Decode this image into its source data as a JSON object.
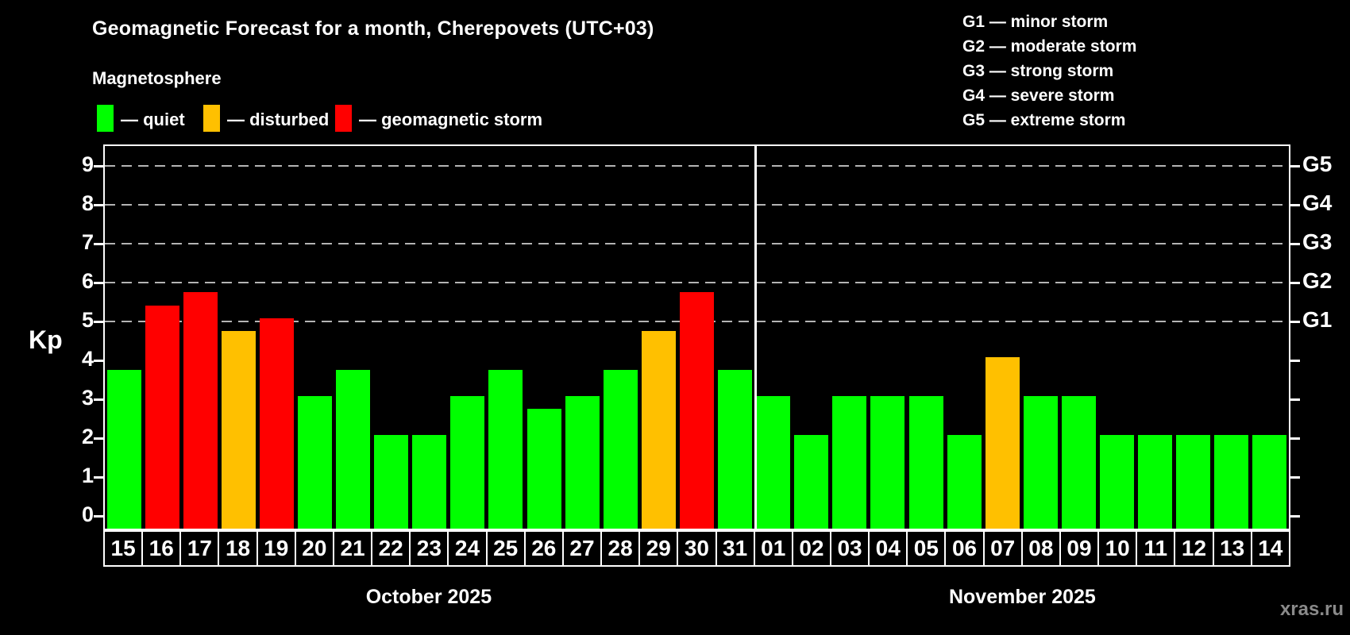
{
  "title": "Geomagnetic Forecast for a month, Cherepovets (UTC+03)",
  "subtitle": "Magnetosphere",
  "legend": {
    "quiet_label": "— quiet",
    "disturbed_label": "— disturbed",
    "storm_label": "— geomagnetic storm"
  },
  "storm_scale": [
    "G1 — minor storm",
    "G2 — moderate storm",
    "G3 — strong storm",
    "G4 — severe storm",
    "G5 — extreme storm"
  ],
  "axis": {
    "y_label": "Kp",
    "y_ticks": [
      0,
      1,
      2,
      3,
      4,
      5,
      6,
      7,
      8,
      9
    ],
    "g_levels": [
      {
        "label": "G1",
        "kp": 5
      },
      {
        "label": "G2",
        "kp": 6
      },
      {
        "label": "G3",
        "kp": 7
      },
      {
        "label": "G4",
        "kp": 8
      },
      {
        "label": "G5",
        "kp": 9
      }
    ]
  },
  "months": [
    {
      "label": "October 2025",
      "days": 17
    },
    {
      "label": "November 2025",
      "days": 14
    }
  ],
  "colors": {
    "quiet": "#00ff00",
    "disturbed": "#ffc000",
    "storm": "#ff0000",
    "grid": "#b4b4b4",
    "watermark": "#8a8a8a"
  },
  "watermark": "xras.ru",
  "chart_data": {
    "type": "bar",
    "title": "Geomagnetic Forecast for a month, Cherepovets (UTC+03)",
    "xlabel": "",
    "ylabel": "Kp",
    "ylim": [
      0,
      9.6
    ],
    "grid": "dashed horizontal lines at Kp 5-9 only (G1-G5 levels)",
    "legend_position": "top-left (status colors) and top-right (G scale)",
    "categories": [
      "15",
      "16",
      "17",
      "18",
      "19",
      "20",
      "21",
      "22",
      "23",
      "24",
      "25",
      "26",
      "27",
      "28",
      "29",
      "30",
      "31",
      "01",
      "02",
      "03",
      "04",
      "05",
      "06",
      "07",
      "08",
      "09",
      "10",
      "11",
      "12",
      "13",
      "14"
    ],
    "values": [
      3.67,
      5.33,
      5.67,
      4.67,
      5.0,
      3.0,
      3.67,
      2.0,
      2.0,
      3.0,
      3.67,
      2.67,
      3.0,
      3.67,
      4.67,
      5.67,
      3.67,
      3.0,
      2.0,
      3.0,
      3.0,
      3.0,
      2.0,
      4.0,
      3.0,
      3.0,
      2.0,
      2.0,
      2.0,
      2.0,
      2.0
    ],
    "statuses": [
      "quiet",
      "storm",
      "storm",
      "disturbed",
      "storm",
      "quiet",
      "quiet",
      "quiet",
      "quiet",
      "quiet",
      "quiet",
      "quiet",
      "quiet",
      "quiet",
      "disturbed",
      "storm",
      "quiet",
      "quiet",
      "quiet",
      "quiet",
      "quiet",
      "quiet",
      "quiet",
      "disturbed",
      "quiet",
      "quiet",
      "quiet",
      "quiet",
      "quiet",
      "quiet",
      "quiet"
    ]
  }
}
